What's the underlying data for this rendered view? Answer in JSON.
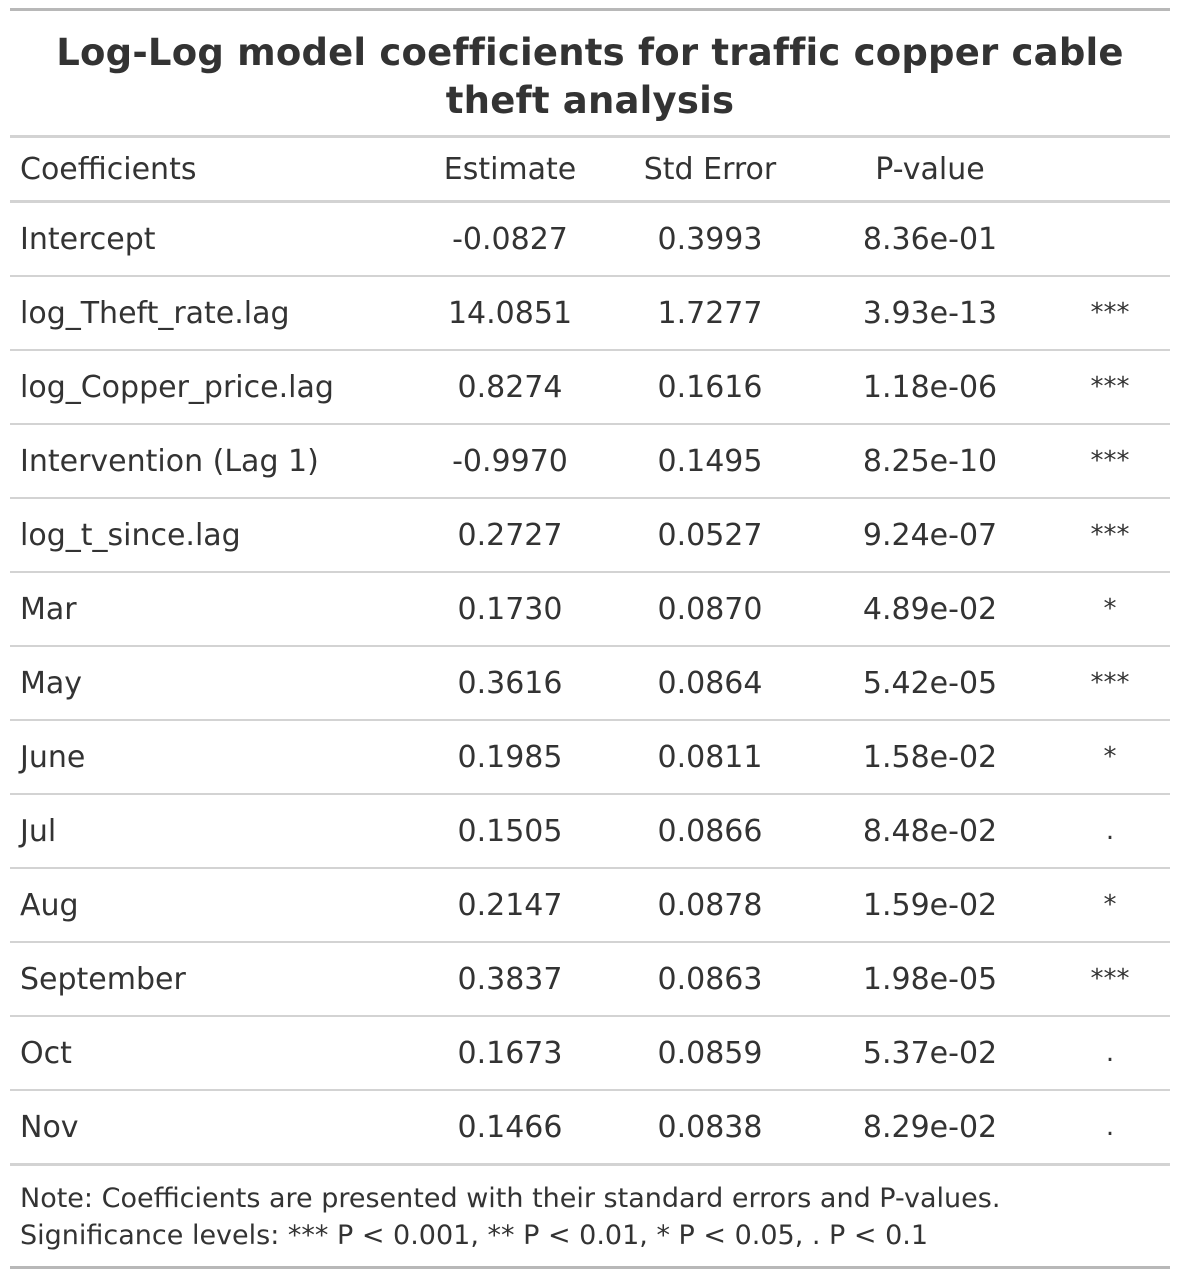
{
  "title": "Log-Log model coefficients for traffic copper cable theft analysis",
  "columns": [
    "Coefficients",
    "Estimate",
    "Std Error",
    "P-value",
    ""
  ],
  "rows": [
    {
      "name": "Intercept",
      "estimate": "-0.0827",
      "std_error": "0.3993",
      "p_value": "8.36e-01",
      "sig": ""
    },
    {
      "name": "log_Theft_rate.lag",
      "estimate": "14.0851",
      "std_error": "1.7277",
      "p_value": "3.93e-13",
      "sig": "***"
    },
    {
      "name": "log_Copper_price.lag",
      "estimate": "0.8274",
      "std_error": "0.1616",
      "p_value": "1.18e-06",
      "sig": "***"
    },
    {
      "name": "Intervention (Lag 1)",
      "estimate": "-0.9970",
      "std_error": "0.1495",
      "p_value": "8.25e-10",
      "sig": "***"
    },
    {
      "name": "log_t_since.lag",
      "estimate": "0.2727",
      "std_error": "0.0527",
      "p_value": "9.24e-07",
      "sig": "***"
    },
    {
      "name": "Mar",
      "estimate": "0.1730",
      "std_error": "0.0870",
      "p_value": "4.89e-02",
      "sig": "*"
    },
    {
      "name": "May",
      "estimate": "0.3616",
      "std_error": "0.0864",
      "p_value": "5.42e-05",
      "sig": "***"
    },
    {
      "name": "June",
      "estimate": "0.1985",
      "std_error": "0.0811",
      "p_value": "1.58e-02",
      "sig": "*"
    },
    {
      "name": "Jul",
      "estimate": "0.1505",
      "std_error": "0.0866",
      "p_value": "8.48e-02",
      "sig": "."
    },
    {
      "name": "Aug",
      "estimate": "0.2147",
      "std_error": "0.0878",
      "p_value": "1.59e-02",
      "sig": "*"
    },
    {
      "name": "September",
      "estimate": "0.3837",
      "std_error": "0.0863",
      "p_value": "1.98e-05",
      "sig": "***"
    },
    {
      "name": "Oct",
      "estimate": "0.1673",
      "std_error": "0.0859",
      "p_value": "5.37e-02",
      "sig": "."
    },
    {
      "name": "Nov",
      "estimate": "0.1466",
      "std_error": "0.0838",
      "p_value": "8.29e-02",
      "sig": "."
    }
  ],
  "note": {
    "line1": "Note: Coefficients are presented with their standard errors and P-values.",
    "line2": "Significance levels: *** P < 0.001, ** P < 0.01, * P < 0.05, . P < 0.1"
  }
}
